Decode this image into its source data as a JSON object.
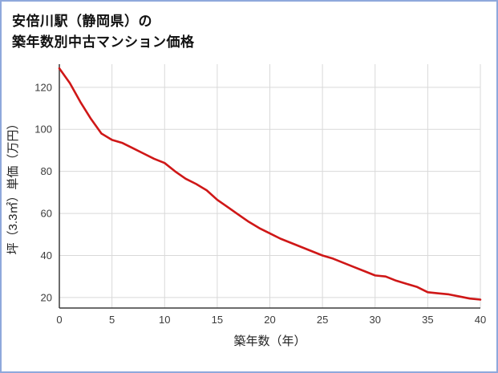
{
  "page": {
    "border_color": "#8fa8dc",
    "background": "#ffffff"
  },
  "header": {
    "title_line1": "安倍川駅（静岡県）の",
    "title_line2": "築年数別中古マンション価格"
  },
  "chart_data": {
    "type": "line",
    "title": "安倍川駅（静岡県）の 築年数別中古マンション価格",
    "xlabel": "築年数（年）",
    "ylabel": "坪（3.3㎡）単価（万円）",
    "x": [
      0,
      1,
      2,
      3,
      4,
      5,
      6,
      7,
      8,
      9,
      10,
      11,
      12,
      13,
      14,
      15,
      16,
      17,
      18,
      19,
      20,
      21,
      22,
      23,
      24,
      25,
      26,
      27,
      28,
      29,
      30,
      31,
      32,
      33,
      34,
      35,
      36,
      37,
      38,
      39,
      40
    ],
    "values": [
      129,
      122,
      113,
      105,
      98,
      95,
      93.5,
      91,
      88.5,
      86,
      84,
      80,
      76.5,
      74,
      71,
      66.5,
      63,
      59.5,
      56,
      53,
      50.5,
      48,
      46,
      44,
      42,
      40,
      38.5,
      36.5,
      34.5,
      32.5,
      30.5,
      30,
      28,
      26.5,
      25,
      22.5,
      22,
      21.5,
      20.5,
      19.5,
      19
    ],
    "xlim": [
      0,
      40
    ],
    "ylim": [
      15,
      131
    ],
    "x_ticks": [
      0,
      5,
      10,
      15,
      20,
      25,
      30,
      35,
      40
    ],
    "y_ticks": [
      20,
      40,
      60,
      80,
      100,
      120
    ],
    "grid": true,
    "legend": "none",
    "line_color": "#cf1717",
    "grid_color": "#d9d9d9",
    "axis_color": "#3b3b3b",
    "tick_color": "#3b3b3b",
    "label_color": "#222222"
  }
}
